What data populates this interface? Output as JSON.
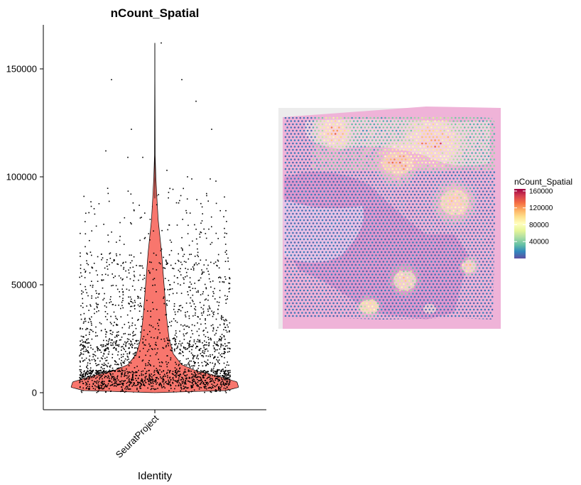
{
  "chart_data": [
    {
      "type": "violin",
      "title": "nCount_Spatial",
      "xlabel": "Identity",
      "ylabel": "",
      "categories": [
        "SeuratProject"
      ],
      "yticks": [
        0,
        50000,
        100000,
        150000
      ],
      "ylim": [
        -8000,
        170000
      ],
      "fill": "#f8766d",
      "point_color": "#000000",
      "max": 162000,
      "median": 6000,
      "density_profile": [
        {
          "y": 0,
          "half_width": 0.0
        },
        {
          "y": 1000,
          "half_width": 0.85
        },
        {
          "y": 2500,
          "half_width": 1.0
        },
        {
          "y": 5000,
          "half_width": 0.98
        },
        {
          "y": 8000,
          "half_width": 0.72
        },
        {
          "y": 10000,
          "half_width": 0.5
        },
        {
          "y": 13000,
          "half_width": 0.32
        },
        {
          "y": 18000,
          "half_width": 0.22
        },
        {
          "y": 25000,
          "half_width": 0.17
        },
        {
          "y": 35000,
          "half_width": 0.14
        },
        {
          "y": 50000,
          "half_width": 0.11
        },
        {
          "y": 65000,
          "half_width": 0.08
        },
        {
          "y": 80000,
          "half_width": 0.04
        },
        {
          "y": 90000,
          "half_width": 0.025
        },
        {
          "y": 100000,
          "half_width": 0.012
        },
        {
          "y": 110000,
          "half_width": 0.004
        },
        {
          "y": 162000,
          "half_width": 0.0
        }
      ],
      "outliers": [
        145000,
        145000,
        135000,
        122000,
        122000,
        162000,
        112000,
        109000,
        109000,
        103000,
        100000,
        99000,
        99000,
        98000
      ]
    },
    {
      "type": "spatial_feature",
      "feature": "nCount_Spatial",
      "legend_title": "nCount_Spatial",
      "legend_ticks": [
        40000,
        80000,
        120000,
        160000
      ],
      "legend_range": [
        0,
        165000
      ],
      "legend_colors": [
        "#5e4fa2",
        "#3288bd",
        "#66c2a5",
        "#abdda4",
        "#e6f598",
        "#ffffbf",
        "#fee08b",
        "#fdae61",
        "#f46d43",
        "#d53e4f",
        "#9e0142"
      ],
      "legend_position": "right"
    }
  ]
}
